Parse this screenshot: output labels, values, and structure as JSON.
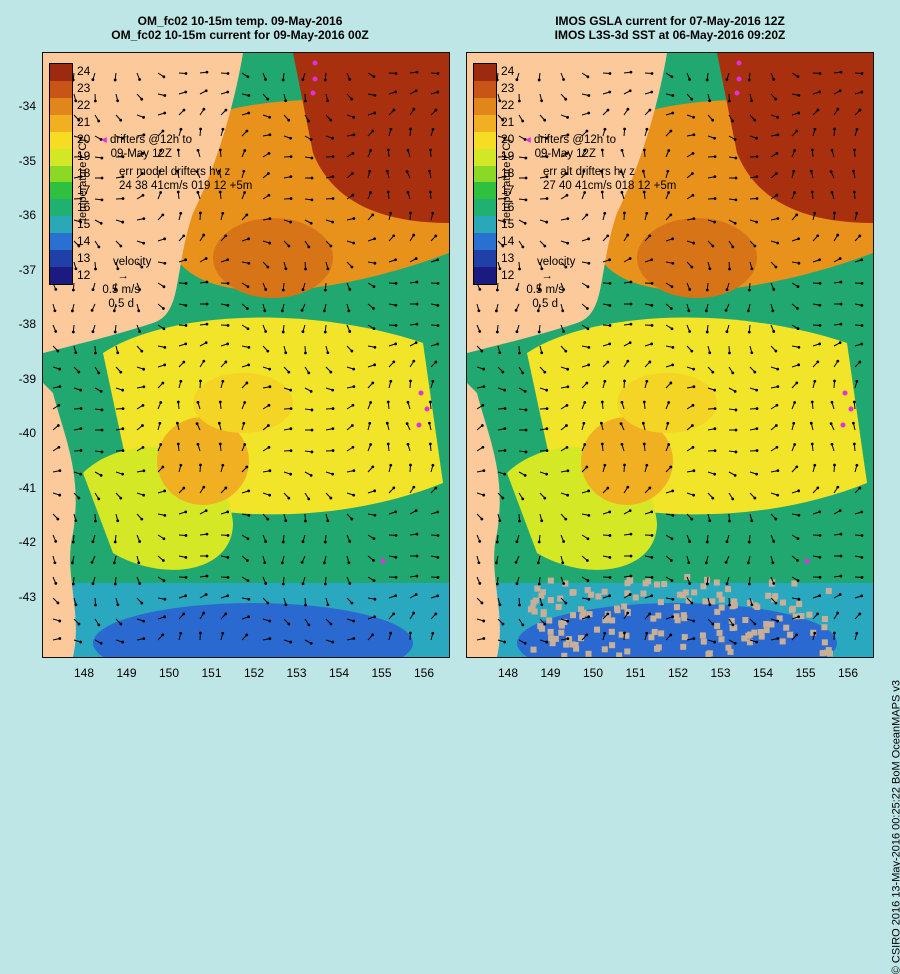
{
  "left": {
    "title1": "OM_fc02 10-15m temp. 09-May-2016",
    "title2": "OM_fc02 10-15m current for 09-May-2016 00Z",
    "drifters": "drifters @12h to",
    "drifters_date": "09-May 12Z",
    "err_title": "err model drifters hv z",
    "err_values": "24 38 41cm/s 019 12 +5m"
  },
  "right": {
    "title1": "IMOS GSLA current for 07-May-2016 12Z",
    "title2": "IMOS L3S-3d SST at 06-May-2016 09:20Z",
    "drifters": "drifters @12h to",
    "drifters_date": "09-May 12Z",
    "err_title": "err alt drifters hv z",
    "err_values": "27 40 41cm/s 018 12 +5m"
  },
  "velocity": {
    "label": "velocity",
    "speed": "0.5 m/s",
    "time": "0.5 d"
  },
  "colorbar": {
    "title": "temperature (°C)",
    "ticks": [
      "24",
      "23",
      "22",
      "21",
      "20",
      "19",
      "18",
      "17",
      "16",
      "15",
      "14",
      "13",
      "12"
    ],
    "colors": [
      "#9c2a10",
      "#c85418",
      "#e0861a",
      "#f0b022",
      "#f6dd24",
      "#d2e826",
      "#8cd826",
      "#30c040",
      "#20b070",
      "#2aa8b8",
      "#2a70d0",
      "#2040a8",
      "#1a1a80"
    ]
  },
  "lat_labels": [
    "-34",
    "-35",
    "-36",
    "-37",
    "-38",
    "-39",
    "-40",
    "-41",
    "-42",
    "-43"
  ],
  "lon_labels": [
    "148",
    "149",
    "150",
    "151",
    "152",
    "153",
    "154",
    "155",
    "156"
  ],
  "credit": "© CSIRO 2016   13-May-2016 00:25:22 BoM OceanMAPS v3"
}
